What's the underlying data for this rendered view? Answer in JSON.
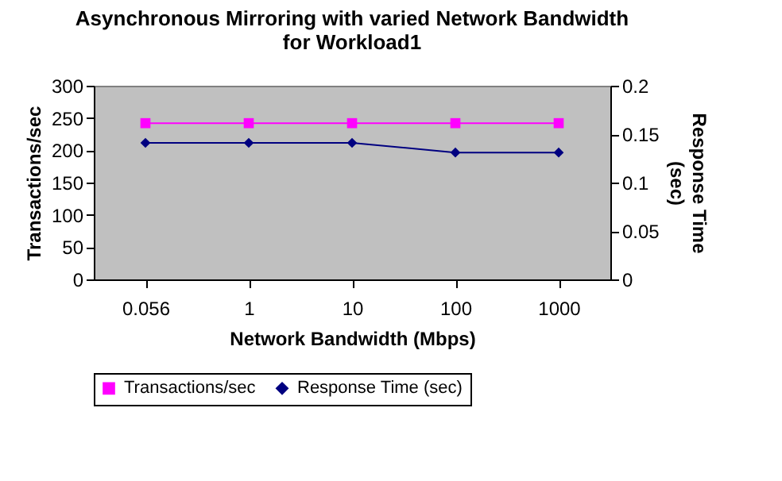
{
  "chart_data": {
    "type": "line",
    "title": "Asynchronous Mirroring with varied Network Bandwidth for Workload1",
    "xlabel": "Network Bandwidth (Mbps)",
    "ylabel": "Transactions/sec",
    "y2label": "Response Time (sec)",
    "categories": [
      "0.056",
      "1",
      "10",
      "100",
      "1000"
    ],
    "series": [
      {
        "name": "Transactions/sec",
        "color": "#ff00ff",
        "marker": "square",
        "values": [
          242,
          242,
          242,
          242,
          242
        ]
      },
      {
        "name": "Response Time (sec)",
        "color": "#000080",
        "marker": "diamond",
        "axis": "y2",
        "values": [
          0.141,
          0.141,
          0.141,
          0.131,
          0.131
        ]
      }
    ],
    "ylim": [
      0,
      300
    ],
    "yticks": [
      0,
      50,
      100,
      150,
      200,
      250,
      300
    ],
    "y2lim": [
      0,
      0.2
    ],
    "y2ticks": [
      0,
      0.05,
      0.1,
      0.15,
      0.2
    ],
    "grid": false,
    "legend": "bottom"
  }
}
